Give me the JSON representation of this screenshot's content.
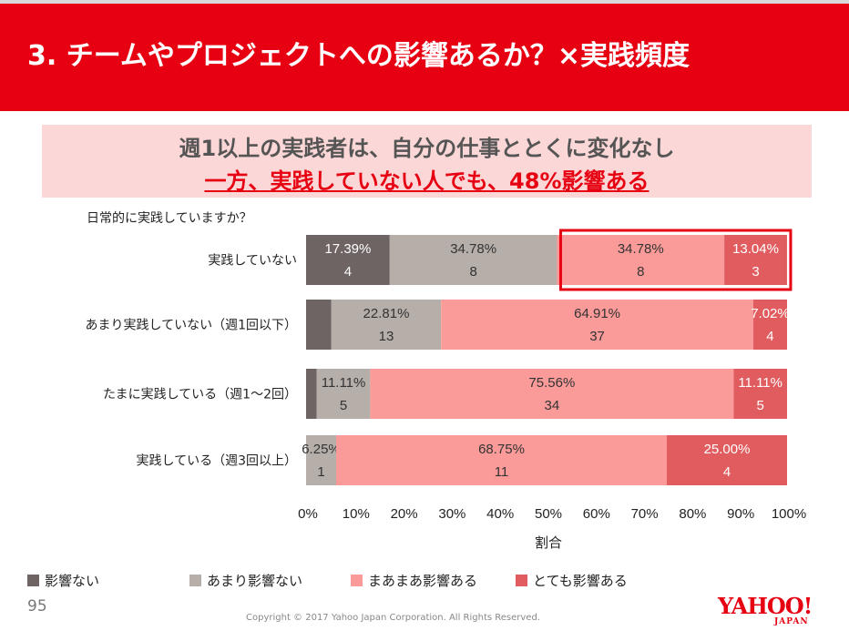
{
  "header": {
    "title": "3. チームやプロジェクトへの影響あるか？×実践頻度"
  },
  "headline": {
    "line1": "週1以上の実践者は、自分の仕事ととくに変化なし",
    "line2": "一方、実践していない人でも、48%影響ある"
  },
  "question": "日常的に実践していますか？",
  "chart_data": {
    "type": "bar",
    "orientation": "horizontal-stacked-100",
    "categories": [
      "実践していない",
      "あまり実践していない（週1回以下）",
      "たまに実践している（週1〜2回）",
      "実践している（週3回以上）"
    ],
    "series": [
      {
        "name": "影響ない",
        "color": "#6e6463",
        "values": [
          17.39,
          null,
          null,
          null
        ],
        "counts": [
          4,
          null,
          null,
          null
        ],
        "labels": [
          "17.39%",
          "",
          "",
          ""
        ]
      },
      {
        "name": "あまり影響ない",
        "color": "#b5aea9",
        "values": [
          34.78,
          22.81,
          11.11,
          6.25
        ],
        "counts": [
          8,
          13,
          5,
          1
        ],
        "labels": [
          "34.78%",
          "22.81%",
          "11.11%",
          "6.25%"
        ]
      },
      {
        "name": "まあまあ影響ある",
        "color": "#fb9b99",
        "values": [
          34.78,
          64.91,
          75.56,
          68.75
        ],
        "counts": [
          8,
          37,
          34,
          11
        ],
        "labels": [
          "34.78%",
          "64.91%",
          "75.56%",
          "68.75%"
        ]
      },
      {
        "name": "とても影響ある",
        "color": "#e05c5f",
        "values": [
          13.04,
          7.02,
          11.11,
          25.0
        ],
        "counts": [
          3,
          4,
          5,
          4
        ],
        "labels": [
          "13.04%",
          "7.02%",
          "11.11%",
          "25.00%"
        ]
      }
    ],
    "ghost_segments": [
      {
        "category_index": 1,
        "series_index": 0,
        "value": 5.26
      },
      {
        "category_index": 2,
        "series_index": 0,
        "value": 2.22
      }
    ],
    "xticks": [
      "0%",
      "10%",
      "20%",
      "30%",
      "40%",
      "50%",
      "60%",
      "70%",
      "80%",
      "90%",
      "100%"
    ],
    "xlabel": "割合",
    "xlim": [
      0,
      100
    ],
    "legend_position": "bottom",
    "highlight": {
      "category_index": 0,
      "series_from": 2,
      "series_to": 3,
      "color": "#e60012"
    }
  },
  "footer": {
    "page_number": "95",
    "copyright": "Copyright ©  2017  Yahoo Japan Corporation. All Rights Reserved.",
    "logo_main": "YAHOO!",
    "logo_sub": "JAPAN"
  },
  "colors": {
    "brand": "#e60012",
    "headline_bg": "#fcd7d7"
  }
}
